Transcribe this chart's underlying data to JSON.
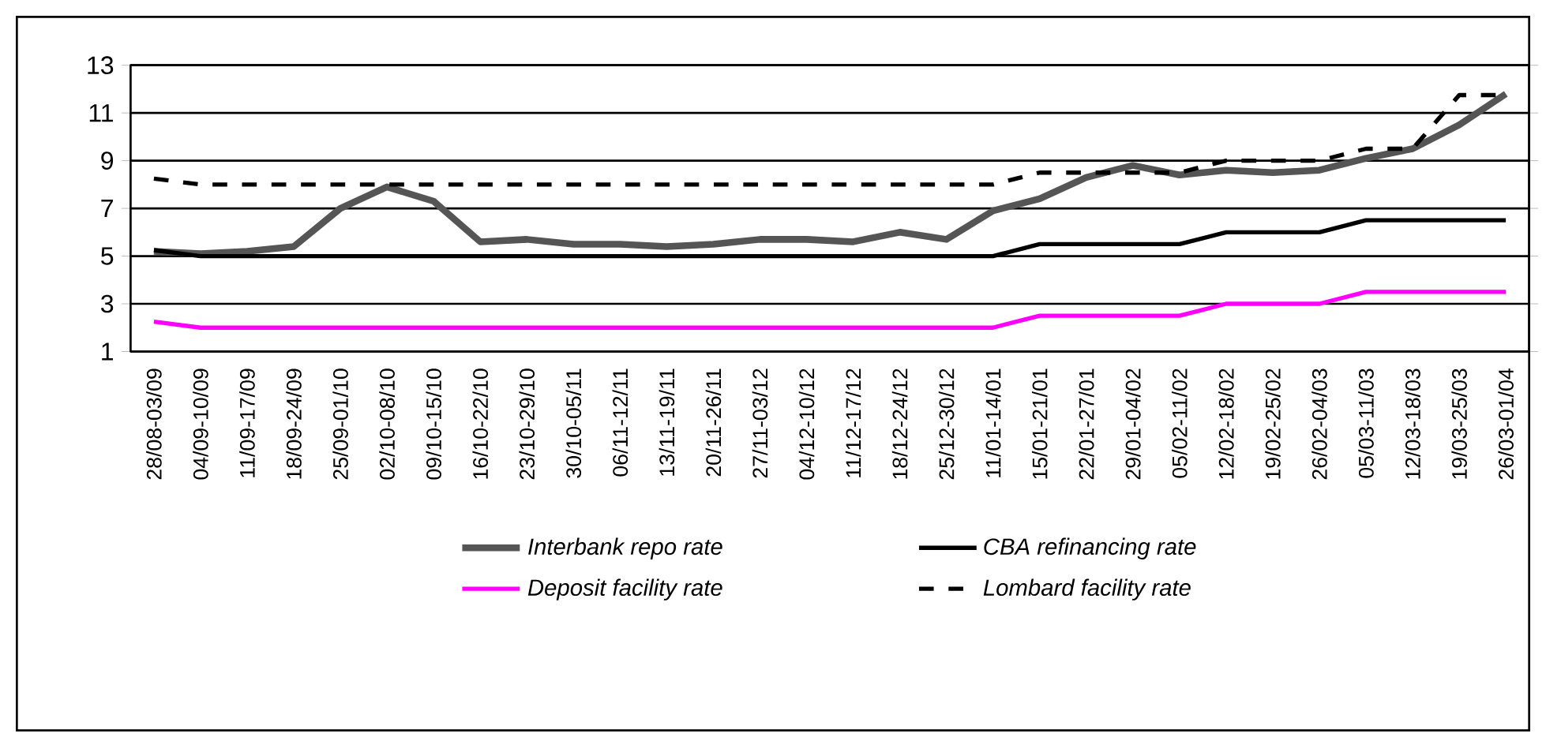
{
  "chart_data": {
    "type": "line",
    "categories": [
      "28/08-03/09",
      "04/09-10/09",
      "11/09-17/09",
      "18/09-24/09",
      "25/09-01/10",
      "02/10-08/10",
      "09/10-15/10",
      "16/10-22/10",
      "23/10-29/10",
      "30/10-05/11",
      "06/11-12/11",
      "13/11-19/11",
      "20/11-26/11",
      "27/11-03/12",
      "04/12-10/12",
      "11/12-17/12",
      "18/12-24/12",
      "25/12-30/12",
      "11/01-14/01",
      "15/01-21/01",
      "22/01-27/01",
      "29/01-04/02",
      "05/02-11/02",
      "12/02-18/02",
      "19/02-25/02",
      "26/02-04/03",
      "05/03-11/03",
      "12/03-18/03",
      "19/03-25/03",
      "26/03-01/04"
    ],
    "series": [
      {
        "name": "Interbank repo rate",
        "color": "#555555",
        "line_style": "solid",
        "values": [
          5.2,
          5.1,
          5.2,
          5.4,
          7.0,
          7.9,
          7.3,
          5.6,
          5.7,
          5.5,
          5.5,
          5.4,
          5.5,
          5.7,
          5.7,
          5.6,
          6.0,
          5.7,
          6.9,
          7.4,
          8.3,
          8.8,
          8.4,
          8.6,
          8.5,
          8.6,
          9.1,
          9.5,
          10.5,
          11.8
        ]
      },
      {
        "name": "CBA refinancing rate",
        "color": "#000000",
        "line_style": "solid",
        "values": [
          5.25,
          5,
          5,
          5,
          5,
          5,
          5,
          5,
          5,
          5,
          5,
          5,
          5,
          5,
          5,
          5,
          5,
          5,
          5,
          5.5,
          5.5,
          5.5,
          5.5,
          6,
          6,
          6,
          6.5,
          6.5,
          6.5,
          6.5
        ]
      },
      {
        "name": "Deposit facility rate",
        "color": "#ff00ff",
        "line_style": "solid",
        "values": [
          2.25,
          2,
          2,
          2,
          2,
          2,
          2,
          2,
          2,
          2,
          2,
          2,
          2,
          2,
          2,
          2,
          2,
          2,
          2,
          2.5,
          2.5,
          2.5,
          2.5,
          3,
          3,
          3,
          3.5,
          3.5,
          3.5,
          3.5
        ]
      },
      {
        "name": "Lombard facility rate",
        "color": "#000000",
        "line_style": "dashed",
        "values": [
          8.25,
          8,
          8,
          8,
          8,
          8,
          8,
          8,
          8,
          8,
          8,
          8,
          8,
          8,
          8,
          8,
          8,
          8,
          8,
          8.5,
          8.5,
          8.5,
          8.5,
          9,
          9,
          9,
          9.5,
          9.5,
          11.75,
          11.75
        ]
      }
    ],
    "ylim": [
      1,
      13
    ],
    "yticks": [
      1,
      3,
      5,
      7,
      9,
      11,
      13
    ],
    "grid": "y",
    "legend": "bottom",
    "marker": "none"
  }
}
